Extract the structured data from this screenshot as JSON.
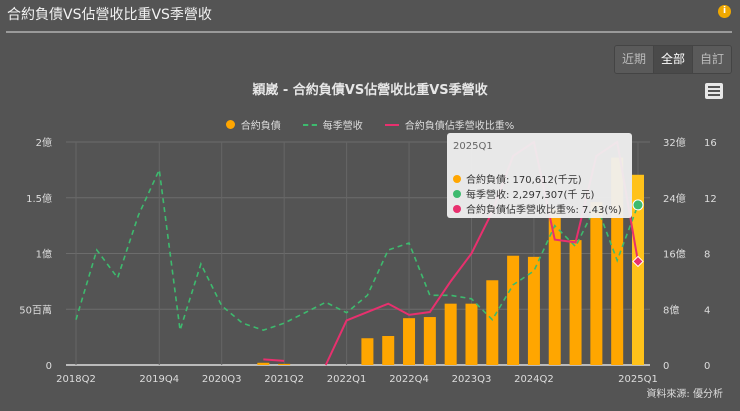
{
  "header": {
    "title": "合約負債VS佔營收比重VS季營收",
    "info_icon": "info-icon"
  },
  "range_buttons": [
    {
      "label": "近期",
      "active": false
    },
    {
      "label": "全部",
      "active": true
    },
    {
      "label": "自訂",
      "active": false
    }
  ],
  "menu_icon": "hamburger-menu-icon",
  "source": "資料來源: 優分析",
  "colors": {
    "bar": "#ffa600",
    "revenue": "#3dba6e",
    "ratio": "#e8306e",
    "background": "#545454"
  },
  "tooltip": {
    "title": "2025Q1",
    "rows": [
      {
        "label": "合約負債: 170,612(千元)",
        "color": "#ffa600"
      },
      {
        "label": "每季營收: 2,297,307(千 元)",
        "color": "#3dba6e"
      },
      {
        "label": "合約負債佔季營收比重%: 7.43(%)",
        "color": "#e8306e"
      }
    ]
  },
  "chart_data": {
    "type": "bar+line",
    "title": "穎崴 - 合約負債VS佔營收比重VS季營收",
    "legend": [
      "合約負債",
      "每季營收",
      "合約負債佔季營收比重%"
    ],
    "legend_position": "top",
    "x_tick_labels": [
      "2018Q2",
      "2019Q4",
      "2020Q3",
      "2021Q2",
      "2022Q1",
      "2022Q4",
      "2023Q3",
      "2024Q2",
      "2025Q1"
    ],
    "y_left": {
      "label": "合約負債",
      "ticks": [
        "0",
        "50百萬",
        "1億",
        "1.5億",
        "2億"
      ],
      "range": [
        0,
        200000000
      ]
    },
    "y_right1": {
      "label": "每季營收",
      "ticks": [
        "0",
        "8億",
        "16億",
        "24億",
        "32億"
      ],
      "range": [
        0,
        3200000000
      ]
    },
    "y_right2": {
      "label": "%",
      "ticks": [
        "0",
        "4",
        "8",
        "12",
        "16"
      ],
      "range": [
        0,
        16
      ]
    },
    "grid": true,
    "series": [
      {
        "name": "合約負債",
        "type": "bar",
        "axis": "left",
        "unit": "億",
        "values": [
          0,
          0,
          0,
          0,
          0,
          0,
          0,
          0,
          0,
          0.02,
          0.01,
          0,
          0,
          0,
          0.24,
          0.26,
          0.42,
          0.43,
          0.55,
          0.55,
          0.76,
          0.98,
          0.97,
          1.4,
          1.12,
          1.46,
          1.86,
          1.706
        ]
      },
      {
        "name": "每季營收",
        "type": "line-dashed",
        "axis": "right1",
        "unit": "億",
        "values": [
          6.5,
          16.5,
          12.5,
          21.5,
          28,
          5,
          14.5,
          8.5,
          6,
          5,
          6,
          7.5,
          9,
          7.5,
          10,
          16.5,
          17.5,
          10,
          10,
          9.5,
          6.5,
          11.5,
          13.5,
          20,
          17,
          22.97,
          15,
          22.97
        ]
      },
      {
        "name": "合約負債佔季營收比重%",
        "type": "line",
        "axis": "right2",
        "unit": "%",
        "values": [
          null,
          null,
          null,
          null,
          null,
          null,
          null,
          null,
          null,
          0.4,
          0.3,
          null,
          0,
          3.2,
          3.8,
          4.4,
          3.6,
          3.8,
          6,
          8,
          11,
          15,
          16,
          9,
          8.8,
          15,
          16,
          7.43
        ]
      }
    ]
  }
}
